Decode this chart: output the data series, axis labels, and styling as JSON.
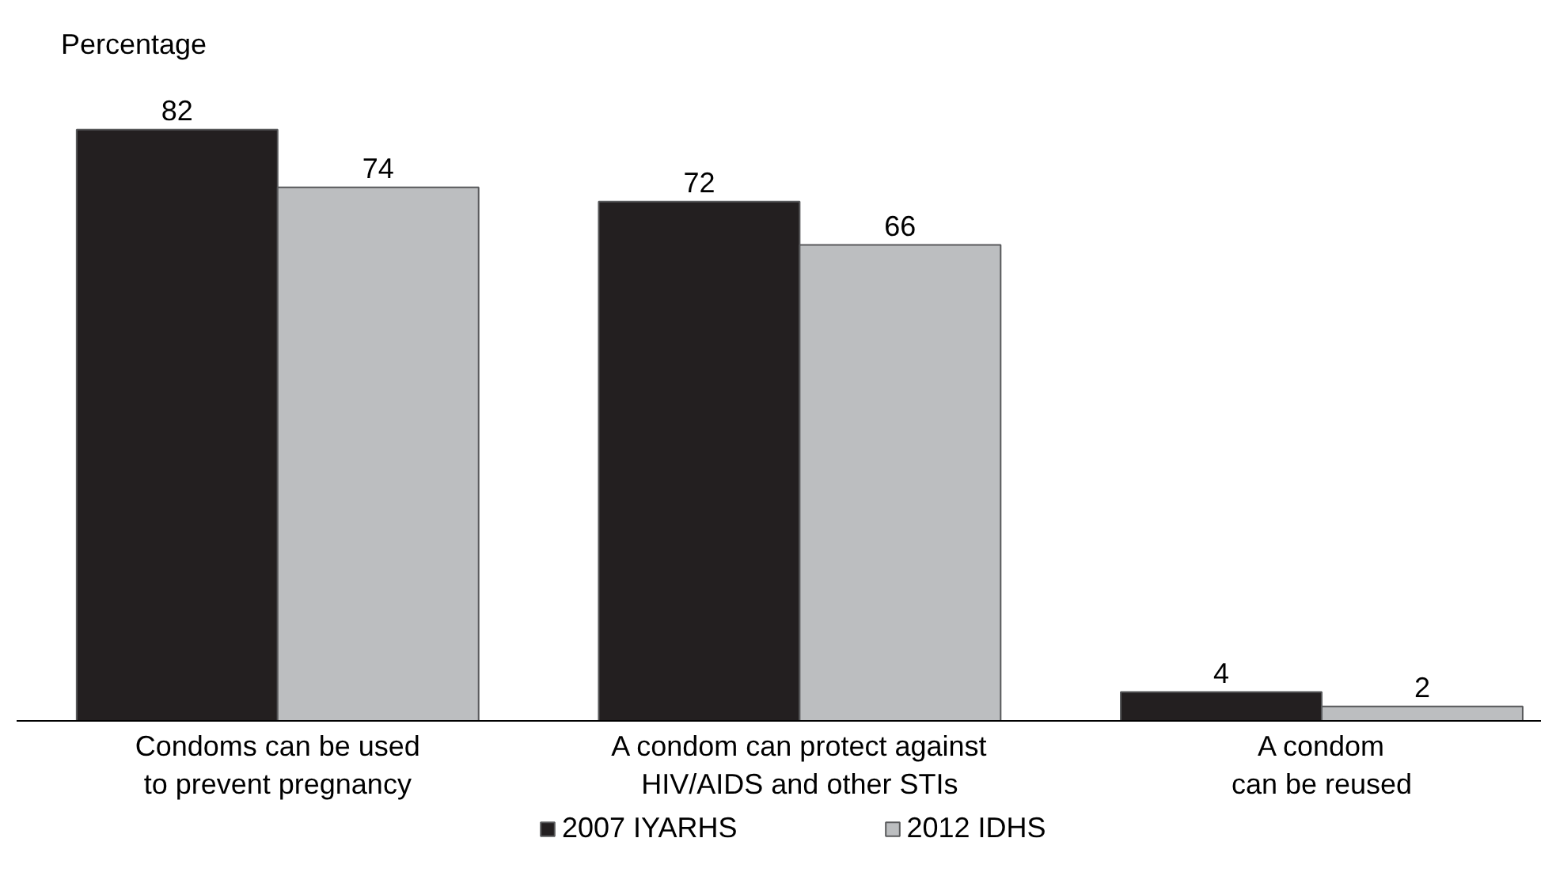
{
  "chart_data": {
    "type": "bar",
    "ylabel": "Percentage",
    "categories": [
      "Condoms can be used\nto prevent pregnancy",
      "A condom can protect against\nHIV/AIDS and other STIs",
      "A condom\ncan be reused"
    ],
    "series": [
      {
        "name": "2007 IYARHS",
        "color": "#231f20",
        "values": [
          82,
          72,
          4
        ]
      },
      {
        "name": "2012 IDHS",
        "color": "#bcbec0",
        "values": [
          74,
          66,
          2
        ]
      }
    ],
    "data_labels": true,
    "legend": "bottom",
    "tick_labels": "x",
    "grid": false
  }
}
